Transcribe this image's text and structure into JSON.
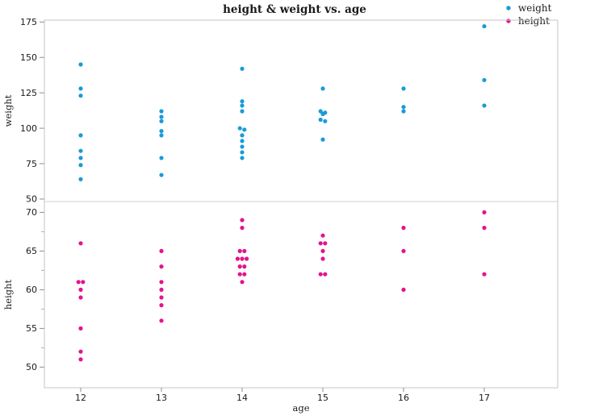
{
  "chart_data": {
    "type": "scatter",
    "title": "height & weight vs. age",
    "xlabel": "age",
    "x_ticks": [
      "12",
      "13",
      "14",
      "15",
      "16",
      "17"
    ],
    "x_domain": [
      12,
      17
    ],
    "grid": false,
    "legend": {
      "position": "top-right",
      "items": [
        {
          "label": "weight",
          "color": "#189BD7"
        },
        {
          "label": "height",
          "color": "#E2148D"
        }
      ]
    },
    "panels": [
      {
        "name": "weight",
        "ylabel": "weight",
        "color": "#189BD7",
        "yticks": [
          "175",
          "150",
          "125",
          "100",
          "75",
          "50"
        ],
        "ylim": [
          47,
          178
        ],
        "groups": [
          {
            "age": 12,
            "values": [
              145,
              128,
              123,
              95,
              84,
              79,
              74,
              64
            ],
            "jitter": [
              0,
              0,
              0,
              0,
              0,
              0,
              0,
              0
            ]
          },
          {
            "age": 13,
            "values": [
              112,
              108,
              105,
              98,
              95,
              79,
              67
            ],
            "jitter": [
              0,
              0,
              0,
              0,
              0,
              0,
              0
            ]
          },
          {
            "age": 14,
            "values": [
              142,
              119,
              116,
              112,
              100,
              99,
              95,
              91,
              87,
              83,
              79
            ],
            "jitter": [
              0,
              0,
              0,
              0,
              -0.5,
              0.5,
              0,
              0,
              0,
              0,
              0
            ]
          },
          {
            "age": 15,
            "values": [
              128,
              112,
              111,
              110,
              106,
              105,
              92
            ],
            "jitter": [
              0,
              -0.5,
              0.5,
              0,
              -0.5,
              0.5,
              0
            ]
          },
          {
            "age": 16,
            "values": [
              128,
              115,
              112
            ],
            "jitter": [
              0,
              0,
              0
            ]
          },
          {
            "age": 17,
            "values": [
              172,
              134,
              116
            ],
            "jitter": [
              0,
              0,
              0
            ]
          }
        ]
      },
      {
        "name": "height",
        "ylabel": "height",
        "color": "#E2148D",
        "yticks": [
          "70",
          "65",
          "60",
          "55",
          "50"
        ],
        "yticks_minor": [
          67.5,
          62.5,
          57.5,
          52.5
        ],
        "ylim": [
          48.5,
          71.8
        ],
        "groups": [
          {
            "age": 12,
            "values": [
              66,
              61,
              61,
              60,
              59,
              55,
              52,
              51
            ],
            "jitter": [
              0,
              -0.5,
              0.5,
              0,
              0,
              0,
              0,
              0
            ]
          },
          {
            "age": 13,
            "values": [
              65,
              63,
              61,
              60,
              59,
              58,
              56
            ],
            "jitter": [
              0,
              0,
              0,
              0,
              0,
              0,
              0
            ]
          },
          {
            "age": 14,
            "values": [
              69,
              68,
              65,
              65,
              64,
              64,
              64,
              63,
              63,
              62,
              62,
              61
            ],
            "jitter": [
              0,
              0,
              -0.5,
              0.5,
              -1,
              0,
              1,
              -0.5,
              0.5,
              -0.5,
              0.5,
              0
            ]
          },
          {
            "age": 15,
            "values": [
              67,
              66,
              66,
              65,
              64,
              62,
              62
            ],
            "jitter": [
              0,
              -0.5,
              0.5,
              0,
              0,
              -0.5,
              0.5
            ]
          },
          {
            "age": 16,
            "values": [
              68,
              65,
              60
            ],
            "jitter": [
              0,
              0,
              0
            ]
          },
          {
            "age": 17,
            "values": [
              70,
              68,
              62
            ],
            "jitter": [
              0,
              0,
              0
            ]
          }
        ]
      }
    ]
  }
}
